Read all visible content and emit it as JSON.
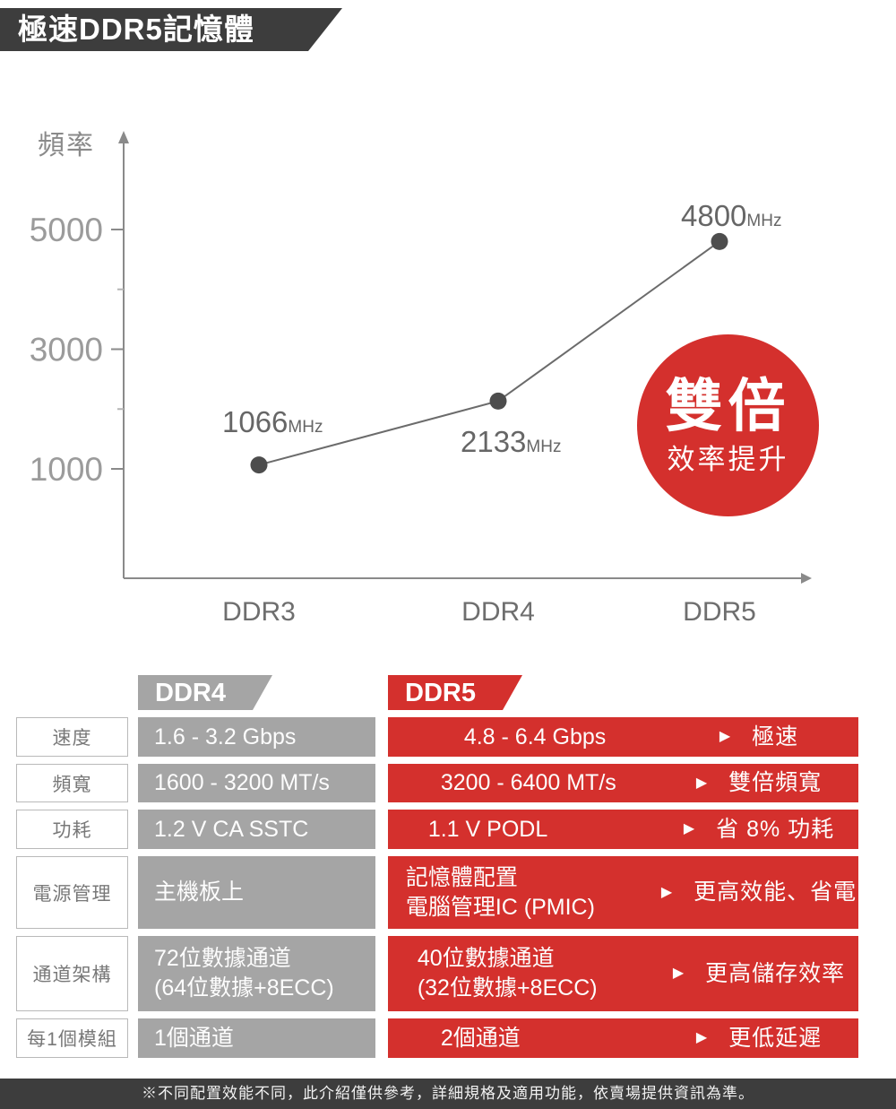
{
  "banner": {
    "title": "極速DDR5記憶體"
  },
  "chart_data": {
    "type": "line",
    "title": "",
    "ylabel": "頻率",
    "xlabel": "",
    "categories": [
      "DDR3",
      "DDR4",
      "DDR5"
    ],
    "values": [
      1066,
      2133,
      4800
    ],
    "unit": "MHz",
    "yticks_major": [
      5000,
      3000,
      1000
    ],
    "yticks_minor": [
      4000,
      2000
    ],
    "ylim": [
      0,
      5800
    ],
    "grid": false,
    "legend": "none",
    "annotation": {
      "line1": "雙倍",
      "line2": "效率提升"
    }
  },
  "comparison_table": {
    "col_ddr4": "DDR4",
    "col_ddr5": "DDR5",
    "benefit_arrow": "▶",
    "rows": [
      {
        "label": "速度",
        "ddr4": [
          "1.6 - 3.2 Gbps"
        ],
        "ddr5": [
          "4.8 - 6.4 Gbps"
        ],
        "benefit": "極速"
      },
      {
        "label": "頻寬",
        "ddr4": [
          "1600 - 3200 MT/s"
        ],
        "ddr5": [
          "3200 - 6400 MT/s"
        ],
        "benefit": "雙倍頻寬"
      },
      {
        "label": "功耗",
        "ddr4": [
          "1.2 V CA SSTC"
        ],
        "ddr5": [
          "1.1 V PODL"
        ],
        "benefit": "省 8% 功耗"
      },
      {
        "label": "電源管理",
        "ddr4": [
          "主機板上"
        ],
        "ddr5": [
          "記憶體配置",
          "電腦管理IC (PMIC)"
        ],
        "benefit": "更高效能、省電"
      },
      {
        "label": "通道架構",
        "ddr4": [
          "72位數據通道",
          "(64位數據+8ECC)"
        ],
        "ddr5": [
          "40位數據通道",
          "(32位數據+8ECC)"
        ],
        "benefit": "更高儲存效率"
      },
      {
        "label": "每1個模組",
        "ddr4": [
          "1個通道"
        ],
        "ddr5": [
          "2個通道"
        ],
        "benefit": "更低延遲"
      }
    ]
  },
  "footer": {
    "disclaimer": "※不同配置效能不同，此介紹僅供參考，詳細規格及適用功能，依賣場提供資訊為準。"
  },
  "colors": {
    "accent_red": "#d4302d",
    "header_dark": "#3d3d3d",
    "column_gray": "#a5a5a5"
  }
}
